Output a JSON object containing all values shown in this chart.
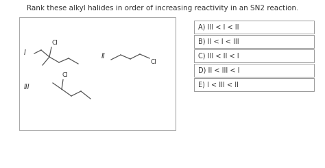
{
  "title": "Rank these alkyl halides in order of increasing reactivity in an SN2 reaction.",
  "title_fontsize": 7.5,
  "options": [
    "A) III < I < II",
    "B) II < I < III",
    "C) III < II < I",
    "D) II < III < I",
    "E) I < III < II"
  ],
  "bg_color": "#ffffff",
  "text_color": "#333333",
  "mol_color": "#555555",
  "option_fontsize": 7.0,
  "mol_lw": 0.9
}
